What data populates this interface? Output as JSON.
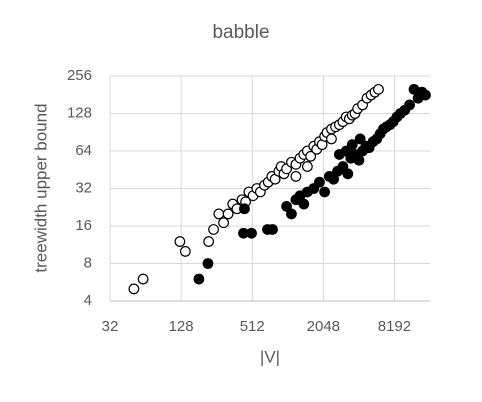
{
  "chart_data": {
    "type": "scatter",
    "title": "babble",
    "xlabel": "|V|",
    "ylabel": "treewidth upper bound",
    "xscale": "log2",
    "yscale": "log2",
    "grid": true,
    "xlim": [
      32,
      16384
    ],
    "xticks": [
      32,
      128,
      512,
      2048,
      8192
    ],
    "ylim": [
      4,
      256
    ],
    "yticks": [
      4,
      8,
      16,
      32,
      64,
      128,
      256
    ],
    "series": [
      {
        "color": "#000000",
        "marker": "open",
        "x": [
          51,
          61,
          125,
          139,
          219,
          241,
          267,
          293,
          320,
          350,
          380,
          420,
          450,
          480,
          520,
          560,
          600,
          650,
          700,
          750,
          800,
          860,
          900,
          950,
          1000,
          1100,
          1200,
          1300,
          1400,
          1500,
          1600,
          1700,
          1800,
          1900,
          2000,
          2100,
          2200,
          2400,
          2600,
          2800,
          3000,
          3200,
          3400,
          3600,
          3800,
          4000,
          4400,
          4800,
          5200,
          5600,
          6000,
          1200,
          1500,
          2400
        ],
        "values": [
          5,
          6,
          12,
          10,
          12,
          15,
          20,
          17,
          20,
          24,
          22,
          26,
          25,
          30,
          28,
          32,
          30,
          34,
          36,
          40,
          38,
          44,
          48,
          42,
          46,
          52,
          50,
          56,
          60,
          64,
          58,
          70,
          66,
          76,
          72,
          84,
          90,
          96,
          100,
          104,
          110,
          120,
          116,
          124,
          128,
          140,
          150,
          170,
          180,
          190,
          200,
          40,
          48,
          80
        ]
      },
      {
        "color": "#000000",
        "marker": "filled",
        "x": [
          181,
          216,
          432,
          505,
          440,
          690,
          760,
          1000,
          1100,
          1200,
          1300,
          1400,
          1500,
          1700,
          1900,
          2100,
          2300,
          2500,
          2700,
          3000,
          3300,
          3500,
          3800,
          4100,
          4400,
          4700,
          5000,
          5400,
          5800,
          6200,
          6600,
          7000,
          7500,
          8000,
          8600,
          9200,
          10000,
          11000,
          12000,
          13000,
          14000,
          15000,
          2800,
          3200,
          3600,
          4200
        ],
        "values": [
          6,
          8,
          14,
          14,
          22,
          15,
          15,
          23,
          20,
          26,
          28,
          24,
          30,
          32,
          36,
          30,
          40,
          38,
          44,
          48,
          42,
          56,
          60,
          54,
          64,
          70,
          68,
          76,
          80,
          88,
          96,
          100,
          104,
          110,
          120,
          128,
          136,
          150,
          200,
          170,
          190,
          180,
          60,
          64,
          72,
          80
        ]
      }
    ]
  }
}
